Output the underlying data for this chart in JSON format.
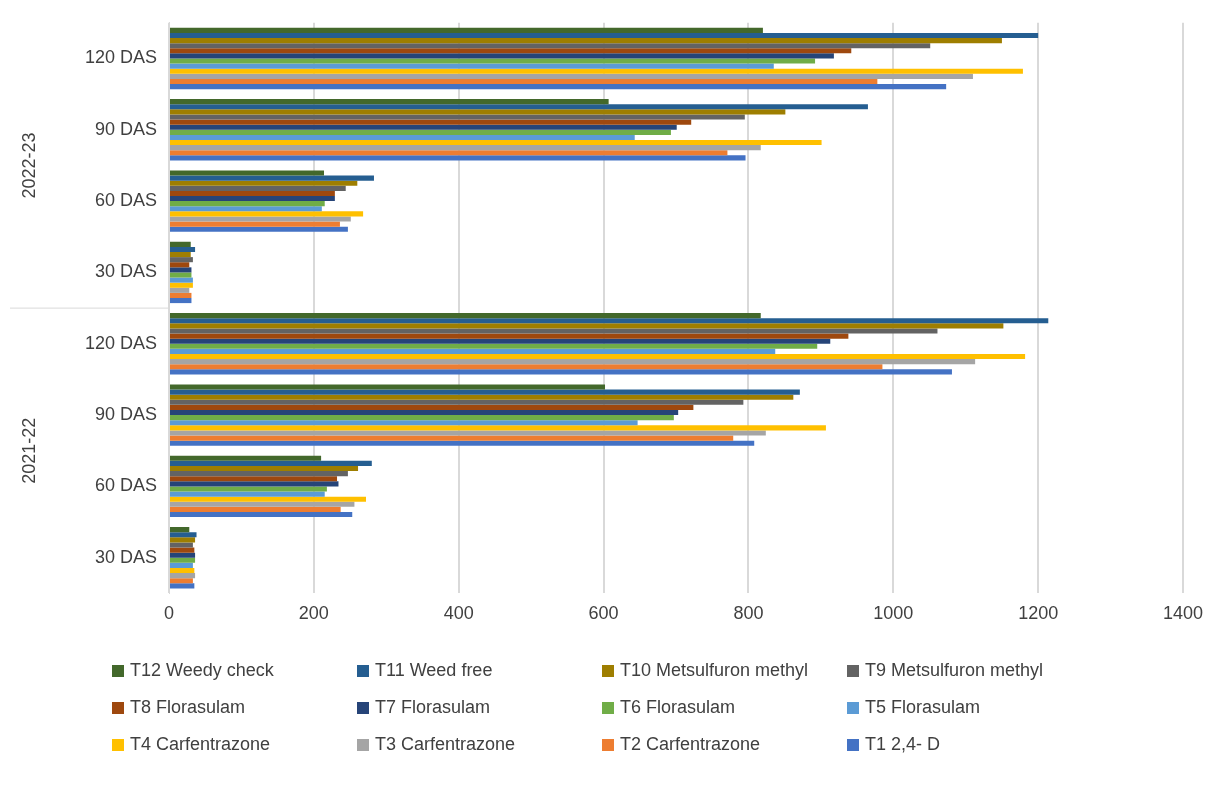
{
  "chart_data": {
    "type": "bar",
    "orientation": "horizontal",
    "categories": [
      "120 DAS",
      "90 DAS",
      "60 DAS",
      "30 DAS",
      "120 DAS",
      "90 DAS",
      "60 DAS",
      "30 DAS"
    ],
    "series": [
      {
        "name": "T12 Weedy check",
        "color": "#43682b",
        "values": [
          820,
          607,
          214,
          30,
          817,
          602,
          210,
          28
        ]
      },
      {
        "name": "T11 Weed free",
        "color": "#255e91",
        "values": [
          1200,
          965,
          283,
          36,
          1214,
          871,
          280,
          38
        ]
      },
      {
        "name": "T10 Metsulfuron methyl",
        "color": "#9e7e00",
        "values": [
          1150,
          851,
          260,
          30,
          1152,
          862,
          261,
          36
        ]
      },
      {
        "name": "T9 Metsulfuron methyl",
        "color": "#636363",
        "values": [
          1051,
          795,
          244,
          33,
          1061,
          793,
          247,
          33
        ]
      },
      {
        "name": "T8 Florasulam",
        "color": "#9e480e",
        "values": [
          942,
          721,
          229,
          28,
          938,
          724,
          232,
          35
        ]
      },
      {
        "name": "T7 Florasulam",
        "color": "#264478",
        "values": [
          918,
          701,
          229,
          31,
          913,
          703,
          234,
          36
        ]
      },
      {
        "name": "T6 Florasulam",
        "color": "#70ad47",
        "values": [
          892,
          693,
          215,
          31,
          895,
          697,
          218,
          36
        ]
      },
      {
        "name": "T5 Florasulam",
        "color": "#5b9bd5",
        "values": [
          835,
          643,
          211,
          33,
          837,
          647,
          215,
          33
        ]
      },
      {
        "name": "T4 Carfentrazone",
        "color": "#ffc000",
        "values": [
          1179,
          901,
          268,
          33,
          1182,
          907,
          272,
          35
        ]
      },
      {
        "name": "T3 Carfentrazone",
        "color": "#a5a5a5",
        "values": [
          1110,
          817,
          251,
          28,
          1113,
          824,
          256,
          36
        ]
      },
      {
        "name": "T2 Carfentrazone",
        "color": "#ed7d31",
        "values": [
          978,
          771,
          236,
          31,
          985,
          779,
          237,
          33
        ]
      },
      {
        "name": "T1 2,4- D",
        "color": "#4472c4",
        "values": [
          1073,
          796,
          247,
          31,
          1081,
          808,
          253,
          35
        ]
      }
    ],
    "xlim": [
      0,
      1400
    ],
    "xticks": [
      0,
      200,
      400,
      600,
      800,
      1000,
      1200,
      1400
    ],
    "grid": "x",
    "legend": "bottom",
    "annotations": [
      "2022-23",
      "2021-22"
    ]
  }
}
